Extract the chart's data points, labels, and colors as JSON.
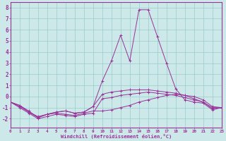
{
  "xlabel": "Windchill (Refroidissement éolien,°C)",
  "background_color": "#cce8e8",
  "grid_color": "#99cccc",
  "line_color": "#993399",
  "hours": [
    0,
    1,
    2,
    3,
    4,
    5,
    6,
    7,
    8,
    9,
    10,
    11,
    12,
    13,
    14,
    15,
    16,
    17,
    18,
    19,
    20,
    21,
    22,
    23
  ],
  "line1": [
    -0.5,
    -0.9,
    -1.4,
    -1.8,
    -1.6,
    -1.5,
    -1.6,
    -1.7,
    -1.5,
    -1.3,
    -1.3,
    -1.2,
    -1.0,
    -0.8,
    -0.5,
    -0.3,
    -0.1,
    0.1,
    0.2,
    0.1,
    0.0,
    -0.3,
    -0.9,
    -1.0
  ],
  "line2": [
    -0.5,
    -1.0,
    -1.5,
    -2.0,
    -1.8,
    -1.6,
    -1.7,
    -1.8,
    -1.6,
    -1.5,
    -0.2,
    -0.1,
    0.1,
    0.2,
    0.3,
    0.4,
    0.3,
    0.2,
    0.1,
    -0.1,
    -0.3,
    -0.5,
    -1.0,
    -1.0
  ],
  "line3": [
    -0.5,
    -0.8,
    -1.3,
    -1.9,
    -1.6,
    -1.4,
    -1.3,
    -1.5,
    -1.4,
    -0.9,
    1.4,
    3.2,
    5.5,
    3.2,
    7.8,
    7.8,
    5.4,
    3.0,
    0.7,
    -0.3,
    -0.5,
    -0.6,
    -1.2,
    -1.0
  ],
  "line4": [
    -0.5,
    -0.8,
    -1.4,
    -1.9,
    -1.6,
    -1.4,
    -1.3,
    -1.5,
    -1.4,
    -0.9,
    0.2,
    0.4,
    0.5,
    0.6,
    0.6,
    0.6,
    0.5,
    0.4,
    0.3,
    0.1,
    -0.2,
    -0.5,
    -1.1,
    -1.0
  ],
  "ylim": [
    -2.8,
    8.5
  ],
  "yticks": [
    -2,
    -1,
    0,
    1,
    2,
    3,
    4,
    5,
    6,
    7,
    8
  ]
}
